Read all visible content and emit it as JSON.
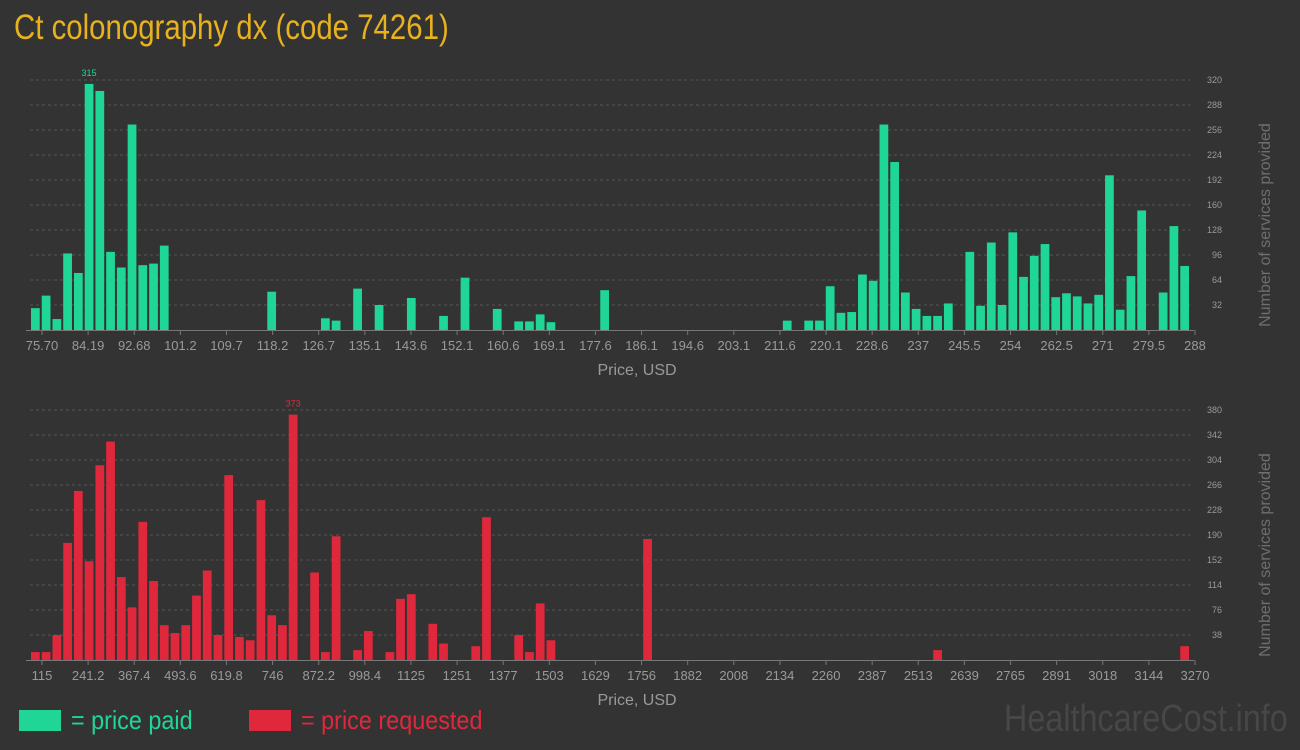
{
  "title": "Ct colonography dx (code 74261)",
  "legend": [
    {
      "label": "= price paid",
      "color": "#1fd696"
    },
    {
      "label": "= price requested",
      "color": "#e0283c"
    }
  ],
  "watermark": "HealthcareCost.info",
  "chart_data": [
    {
      "type": "bar",
      "name": "price paid",
      "color": "#1fd696",
      "xlabel": "Price, USD",
      "ylabel": "Number of services provided",
      "x_ticks": [
        "75.70",
        "84.19",
        "92.68",
        "101.2",
        "109.7",
        "118.2",
        "126.7",
        "135.1",
        "143.6",
        "152.1",
        "160.6",
        "169.1",
        "177.6",
        "186.1",
        "194.6",
        "203.1",
        "211.6",
        "220.1",
        "228.6",
        "237",
        "245.5",
        "254",
        "262.5",
        "271",
        "279.5",
        "288"
      ],
      "y_ticks": [
        32,
        64,
        96,
        128,
        160,
        192,
        224,
        256,
        288,
        320
      ],
      "ylim": [
        0,
        320
      ],
      "max_label": "315",
      "grid": true,
      "values": [
        28,
        44,
        14,
        98,
        73,
        315,
        306,
        100,
        80,
        263,
        83,
        85,
        108,
        0,
        0,
        0,
        0,
        0,
        0,
        0,
        0,
        0,
        49,
        0,
        0,
        0,
        0,
        15,
        12,
        0,
        53,
        0,
        32,
        0,
        0,
        41,
        0,
        0,
        18,
        0,
        67,
        0,
        0,
        27,
        0,
        11,
        11,
        20,
        10,
        0,
        0,
        0,
        0,
        51,
        0,
        0,
        0,
        0,
        0,
        0,
        0,
        0,
        0,
        0,
        0,
        0,
        0,
        0,
        0,
        0,
        12,
        0,
        12,
        12,
        56,
        22,
        23,
        71,
        63,
        263,
        215,
        48,
        27,
        18,
        18,
        34,
        0,
        100,
        31,
        112,
        32,
        125,
        68,
        95,
        110,
        42,
        47,
        43,
        34,
        45,
        198,
        26,
        69,
        153,
        0,
        48,
        133,
        82
      ]
    },
    {
      "type": "bar",
      "name": "price requested",
      "color": "#e0283c",
      "xlabel": "Price, USD",
      "ylabel": "Number of services provided",
      "x_ticks": [
        "115",
        "241.2",
        "367.4",
        "493.6",
        "619.8",
        "746",
        "872.2",
        "998.4",
        "1125",
        "1251",
        "1377",
        "1503",
        "1629",
        "1756",
        "1882",
        "2008",
        "2134",
        "2260",
        "2387",
        "2513",
        "2639",
        "2765",
        "2891",
        "3018",
        "3144",
        "3270"
      ],
      "y_ticks": [
        38,
        76,
        114,
        152,
        190,
        228,
        266,
        304,
        342,
        380
      ],
      "ylim": [
        0,
        380
      ],
      "max_label": "373",
      "grid": true,
      "values": [
        12,
        12,
        38,
        178,
        257,
        150,
        296,
        332,
        126,
        80,
        210,
        120,
        53,
        41,
        53,
        98,
        136,
        38,
        281,
        35,
        30,
        243,
        68,
        53,
        373,
        0,
        133,
        12,
        188,
        0,
        15,
        44,
        0,
        12,
        93,
        100,
        0,
        55,
        25,
        0,
        0,
        21,
        217,
        0,
        0,
        38,
        12,
        86,
        30,
        0,
        0,
        0,
        0,
        0,
        0,
        0,
        0,
        184,
        0,
        0,
        0,
        0,
        0,
        0,
        0,
        0,
        0,
        0,
        0,
        0,
        0,
        0,
        0,
        0,
        0,
        0,
        0,
        0,
        0,
        0,
        0,
        0,
        0,
        0,
        15,
        0,
        0,
        0,
        0,
        0,
        0,
        0,
        0,
        0,
        0,
        0,
        0,
        0,
        0,
        0,
        0,
        0,
        0,
        0,
        0,
        0,
        0,
        21
      ]
    }
  ]
}
